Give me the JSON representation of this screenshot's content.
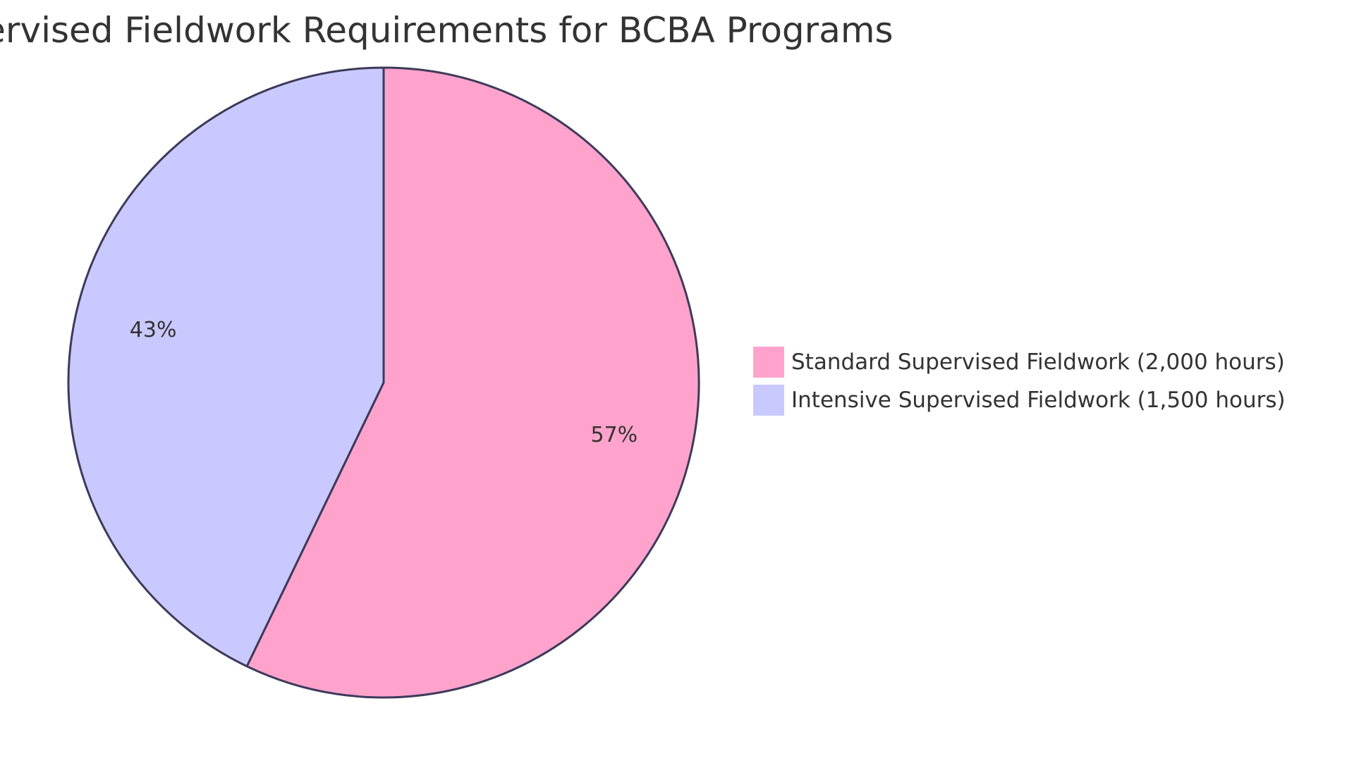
{
  "chart_data": {
    "type": "pie",
    "title": "Supervised Fieldwork Requirements for BCBA Programs",
    "legend_position": "right",
    "start_angle_deg": 0,
    "direction": "clockwise",
    "slices": [
      {
        "label": "Standard Supervised Fieldwork (2,000 hours)",
        "value": 2000,
        "percent_label": "57%",
        "color": "#ffa3cd"
      },
      {
        "label": "Intensive Supervised Fieldwork (1,500 hours)",
        "value": 1500,
        "percent_label": "43%",
        "color": "#c9c9ff"
      }
    ],
    "stroke_color": "#3d3a59"
  }
}
